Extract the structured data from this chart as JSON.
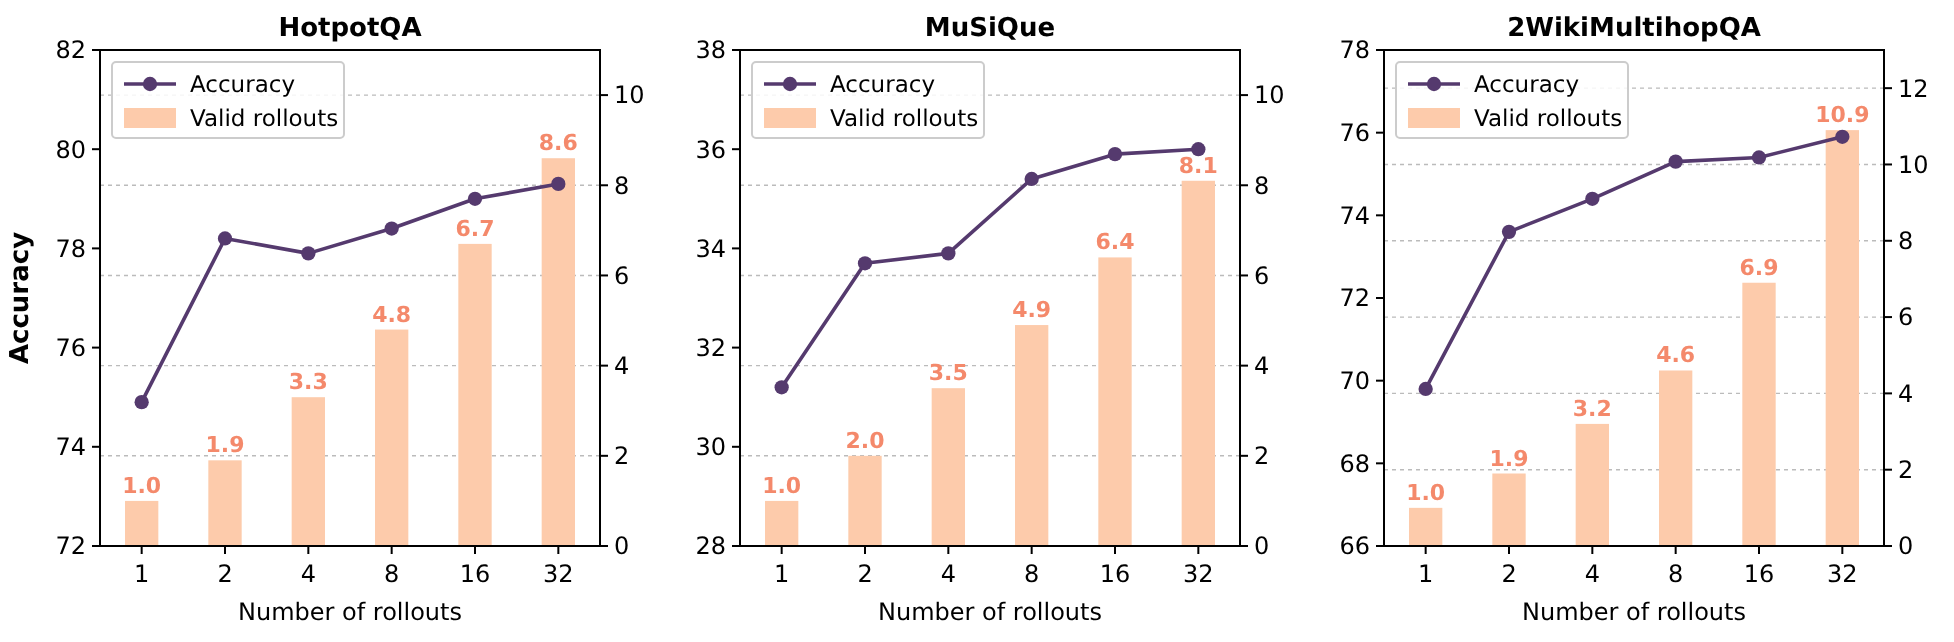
{
  "chart_data": [
    {
      "type": "line",
      "title": "HotpotQA",
      "xlabel": "Number of rollouts",
      "ylabel": "Accuracy",
      "categories": [
        "1",
        "2",
        "4",
        "8",
        "16",
        "32"
      ],
      "ylim": [
        72,
        82
      ],
      "yticks": [
        72,
        74,
        76,
        78,
        80,
        82
      ],
      "y2lim": [
        0,
        11
      ],
      "y2ticks": [
        0,
        2,
        4,
        6,
        8,
        10
      ],
      "grid": "y2",
      "legend": "top left",
      "marker": "circle",
      "series": [
        {
          "name": "Valid rollouts",
          "type": "bar",
          "axis": "y2",
          "color": "#fdcbab",
          "values": [
            1.0,
            1.9,
            3.3,
            4.8,
            6.7,
            8.6
          ],
          "value_labels": [
            "1.0",
            "1.9",
            "3.3",
            "4.8",
            "6.7",
            "8.6"
          ]
        },
        {
          "name": "Accuracy",
          "color": "#553a6e",
          "values": [
            74.9,
            78.2,
            77.9,
            78.4,
            79.0,
            79.3
          ]
        }
      ]
    },
    {
      "type": "line",
      "title": "MuSiQue",
      "xlabel": "Number of rollouts",
      "categories": [
        "1",
        "2",
        "4",
        "8",
        "16",
        "32"
      ],
      "ylim": [
        28,
        38
      ],
      "yticks": [
        28,
        30,
        32,
        34,
        36,
        38
      ],
      "y2lim": [
        0,
        11
      ],
      "y2ticks": [
        0,
        2,
        4,
        6,
        8,
        10
      ],
      "grid": "y2",
      "legend": "top left",
      "marker": "circle",
      "series": [
        {
          "name": "Valid rollouts",
          "type": "bar",
          "axis": "y2",
          "color": "#fdcbab",
          "values": [
            1.0,
            2.0,
            3.5,
            4.9,
            6.4,
            8.1
          ],
          "value_labels": [
            "1.0",
            "2.0",
            "3.5",
            "4.9",
            "6.4",
            "8.1"
          ]
        },
        {
          "name": "Accuracy",
          "color": "#553a6e",
          "values": [
            31.2,
            33.7,
            33.9,
            35.4,
            35.9,
            36.0
          ]
        }
      ]
    },
    {
      "type": "line",
      "title": "2WikiMultihopQA",
      "xlabel": "Number of rollouts",
      "categories": [
        "1",
        "2",
        "4",
        "8",
        "16",
        "32"
      ],
      "ylim": [
        66,
        78
      ],
      "yticks": [
        66,
        68,
        70,
        72,
        74,
        76,
        78
      ],
      "y2lim": [
        0,
        13
      ],
      "y2ticks": [
        0,
        2,
        4,
        6,
        8,
        10,
        12
      ],
      "grid": "y2",
      "legend": "top left",
      "marker": "circle",
      "series": [
        {
          "name": "Valid rollouts",
          "type": "bar",
          "axis": "y2",
          "color": "#fdcbab",
          "values": [
            1.0,
            1.9,
            3.2,
            4.6,
            6.9,
            10.9
          ],
          "value_labels": [
            "1.0",
            "1.9",
            "3.2",
            "4.6",
            "6.9",
            "10.9"
          ]
        },
        {
          "name": "Accuracy",
          "color": "#553a6e",
          "values": [
            69.8,
            73.6,
            74.4,
            75.3,
            75.4,
            75.9
          ]
        }
      ]
    }
  ]
}
